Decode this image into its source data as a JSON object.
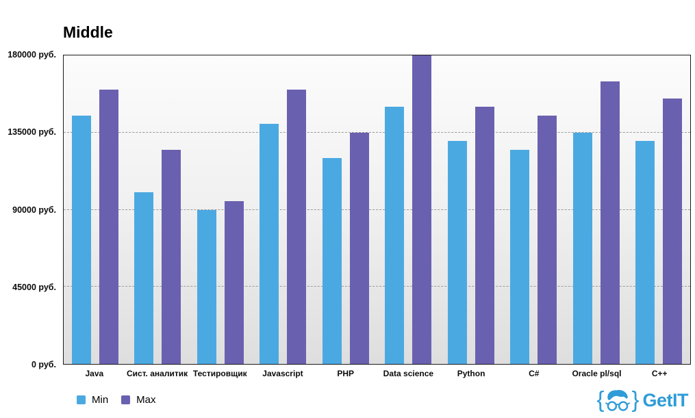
{
  "title": "Middle",
  "chart_data": {
    "type": "bar",
    "title": "Middle",
    "categories": [
      "Java",
      "Сист. аналитик",
      "Тестировщик",
      "Javascript",
      "PHP",
      "Data science",
      "Python",
      "C#",
      "Oracle pl/sql",
      "C++"
    ],
    "series": [
      {
        "name": "Min",
        "color": "#4BA9E2",
        "values": [
          145000,
          100000,
          90000,
          140000,
          120000,
          150000,
          130000,
          125000,
          135000,
          130000
        ]
      },
      {
        "name": "Max",
        "color": "#6A60B0",
        "values": [
          160000,
          125000,
          95000,
          160000,
          135000,
          180000,
          150000,
          145000,
          165000,
          155000
        ]
      }
    ],
    "ylim": [
      0,
      180000
    ],
    "y_ticks": [
      {
        "label": "0 руб.",
        "value": 0
      },
      {
        "label": "45000 руб.",
        "value": 45000
      },
      {
        "label": "90000 руб.",
        "value": 90000
      },
      {
        "label": "135000 руб.",
        "value": 135000
      },
      {
        "label": "180000 руб.",
        "value": 180000
      }
    ],
    "grid": "horizontal-dashed",
    "legend_position": "bottom-left"
  },
  "legend": {
    "items": [
      {
        "label": "Min",
        "color": "#4BA9E2"
      },
      {
        "label": "Max",
        "color": "#6A60B0"
      }
    ]
  },
  "logo": {
    "brace_left": "{",
    "brace_right": "}",
    "text": "GetIT",
    "color": "#2F9CD8"
  }
}
